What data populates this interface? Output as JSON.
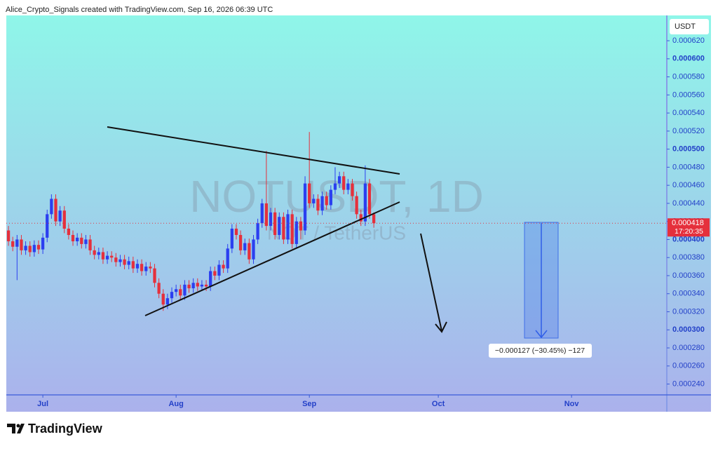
{
  "header": "Alice_Crypto_Signals created with TradingView.com, Sep 16, 2026 06:39 UTC",
  "watermark": {
    "symbol": "NOTUSDT, 1D",
    "name": "NOT / TetherUS"
  },
  "currency": "USDT",
  "countdown": "17:20:35",
  "measure_label": "−0.000127 (−30.45%) −127",
  "logo": "TradingView",
  "chart_data": {
    "type": "candlestick",
    "colors": {
      "up": "#2b3ff0",
      "down": "#e5303c"
    },
    "xlim": [
      -0.5,
      153
    ],
    "xticks": [
      {
        "value": 8,
        "label": "Jul"
      },
      {
        "value": 39,
        "label": "Aug"
      },
      {
        "value": 70,
        "label": "Sep"
      },
      {
        "value": 100,
        "label": "Oct"
      },
      {
        "value": 131,
        "label": "Nov"
      }
    ],
    "ylim": [
      0.000228,
      0.000648
    ],
    "yticks": [
      {
        "value": 0.00024,
        "label": "0.000240"
      },
      {
        "value": 0.00026,
        "label": "0.000260"
      },
      {
        "value": 0.00028,
        "label": "0.000280"
      },
      {
        "value": 0.0003,
        "label": "0.000300"
      },
      {
        "value": 0.00032,
        "label": "0.000320"
      },
      {
        "value": 0.00034,
        "label": "0.000340"
      },
      {
        "value": 0.00036,
        "label": "0.000360"
      },
      {
        "value": 0.00038,
        "label": "0.000380"
      },
      {
        "value": 0.0004,
        "label": "0.000400"
      },
      {
        "value": 0.00042,
        "label": "0.000420"
      },
      {
        "value": 0.00044,
        "label": "0.000440"
      },
      {
        "value": 0.00046,
        "label": "0.000460"
      },
      {
        "value": 0.00048,
        "label": "0.000480"
      },
      {
        "value": 0.0005,
        "label": "0.000500"
      },
      {
        "value": 0.00052,
        "label": "0.000520"
      },
      {
        "value": 0.00054,
        "label": "0.000540"
      },
      {
        "value": 0.00056,
        "label": "0.000560"
      },
      {
        "value": 0.00058,
        "label": "0.000580"
      },
      {
        "value": 0.0006,
        "label": "0.000600"
      },
      {
        "value": 0.00062,
        "label": "0.000620"
      }
    ],
    "open": [
      0.00041,
      0.000398,
      0.000392,
      0.0004,
      0.000388,
      0.000393,
      0.000386,
      0.000394,
      0.000389,
      0.000402,
      0.000428,
      0.000445,
      0.00042,
      0.000432,
      0.000412,
      0.000405,
      0.000398,
      0.000402,
      0.000395,
      0.0004,
      0.000388,
      0.000383,
      0.000386,
      0.000378,
      0.000382,
      0.00038,
      0.000375,
      0.000378,
      0.000372,
      0.000376,
      0.000368,
      0.000373,
      0.000365,
      0.00037,
      0.000368,
      0.000352,
      0.00034,
      0.000328,
      0.000335,
      0.000342,
      0.000345,
      0.000338,
      0.00035,
      0.000346,
      0.000352,
      0.000348,
      0.00035,
      0.000348,
      0.000365,
      0.00036,
      0.000372,
      0.000368,
      0.00039,
      0.000412,
      0.000405,
      0.000388,
      0.000396,
      0.000378,
      0.0004,
      0.000418,
      0.00044,
      0.000415,
      0.00043,
      0.000405,
      0.000425,
      0.0004,
      0.000428,
      0.000395,
      0.00042,
      0.00041,
      0.000462,
      0.00044,
      0.000445,
      0.000432,
      0.000448,
      0.000438,
      0.000455,
      0.000462,
      0.00047,
      0.000455,
      0.000462,
      0.000448,
      0.000428,
      0.00042,
      0.000462,
      0.000428
    ],
    "high": [
      0.000415,
      0.000403,
      0.000405,
      0.000405,
      0.000398,
      0.000398,
      0.000399,
      0.000399,
      0.000407,
      0.000433,
      0.00045,
      0.00045,
      0.000437,
      0.000437,
      0.000417,
      0.00041,
      0.000407,
      0.000407,
      0.000405,
      0.000405,
      0.000393,
      0.000391,
      0.000391,
      0.000387,
      0.000387,
      0.000385,
      0.000383,
      0.000383,
      0.000381,
      0.000381,
      0.000378,
      0.000378,
      0.000375,
      0.000375,
      0.000373,
      0.000357,
      0.000345,
      0.00034,
      0.000347,
      0.00035,
      0.00035,
      0.000355,
      0.000355,
      0.000357,
      0.000357,
      0.000355,
      0.000355,
      0.00037,
      0.00037,
      0.000377,
      0.000377,
      0.000395,
      0.000417,
      0.000417,
      0.00041,
      0.000401,
      0.000401,
      0.000405,
      0.000423,
      0.000445,
      0.000498,
      0.000435,
      0.000435,
      0.00043,
      0.00043,
      0.000433,
      0.000433,
      0.000425,
      0.000425,
      0.00047,
      0.000519,
      0.00045,
      0.00045,
      0.000453,
      0.000453,
      0.00046,
      0.00048,
      0.000475,
      0.000475,
      0.000467,
      0.000467,
      0.000453,
      0.000433,
      0.000482,
      0.000467,
      0.00043
    ],
    "low": [
      0.000393,
      0.000387,
      0.000355,
      0.000383,
      0.000383,
      0.000381,
      0.000381,
      0.000384,
      0.000384,
      0.000397,
      0.000423,
      0.000415,
      0.000415,
      0.000407,
      0.0004,
      0.000393,
      0.000393,
      0.00039,
      0.00039,
      0.000383,
      0.000378,
      0.000378,
      0.000373,
      0.000373,
      0.000375,
      0.00037,
      0.00037,
      0.000367,
      0.000367,
      0.000363,
      0.000363,
      0.00036,
      0.00036,
      0.000363,
      0.000347,
      0.000335,
      0.000321,
      0.000323,
      0.00033,
      0.000337,
      0.000333,
      0.000333,
      0.000341,
      0.000341,
      0.000343,
      0.000343,
      0.000343,
      0.000343,
      0.000355,
      0.000355,
      0.000363,
      0.000363,
      0.000385,
      0.0004,
      0.000383,
      0.000383,
      0.000373,
      0.000373,
      0.000395,
      0.000413,
      0.00041,
      0.00041,
      0.0004,
      0.0004,
      0.000395,
      0.000395,
      0.00039,
      0.00039,
      0.0004,
      0.000405,
      0.000435,
      0.000435,
      0.000427,
      0.000427,
      0.000433,
      0.000433,
      0.00045,
      0.000457,
      0.00045,
      0.00045,
      0.000443,
      0.000423,
      0.000415,
      0.000415,
      0.000423,
      0.000413
    ],
    "close": [
      0.000398,
      0.000392,
      0.0004,
      0.000388,
      0.000393,
      0.000386,
      0.000394,
      0.000389,
      0.000402,
      0.000428,
      0.000445,
      0.00042,
      0.000432,
      0.000412,
      0.000405,
      0.000398,
      0.000402,
      0.000395,
      0.0004,
      0.000388,
      0.000383,
      0.000386,
      0.000378,
      0.000382,
      0.00038,
      0.000375,
      0.000378,
      0.000372,
      0.000376,
      0.000368,
      0.000373,
      0.000365,
      0.00037,
      0.000368,
      0.000352,
      0.00034,
      0.000328,
      0.000335,
      0.000342,
      0.000345,
      0.000338,
      0.00035,
      0.000346,
      0.000352,
      0.000348,
      0.00035,
      0.000348,
      0.000365,
      0.00036,
      0.000372,
      0.000368,
      0.00039,
      0.000412,
      0.000405,
      0.000388,
      0.000396,
      0.000378,
      0.0004,
      0.000418,
      0.00044,
      0.000415,
      0.00043,
      0.000405,
      0.000425,
      0.0004,
      0.000428,
      0.000395,
      0.00042,
      0.00041,
      0.000462,
      0.00044,
      0.000445,
      0.000432,
      0.000448,
      0.000438,
      0.000455,
      0.000462,
      0.00047,
      0.000455,
      0.000462,
      0.000448,
      0.000428,
      0.00042,
      0.000462,
      0.000428,
      0.000418
    ]
  }
}
